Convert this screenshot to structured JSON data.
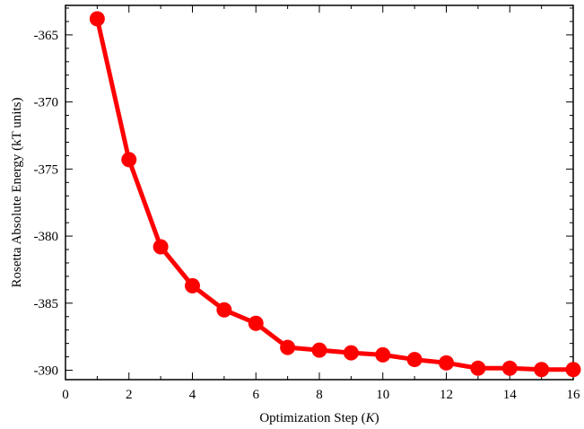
{
  "chart_data": {
    "type": "line",
    "title": "",
    "xlabel_prefix": "Optimization Step (",
    "xlabel_var": "K",
    "xlabel_suffix": ")",
    "ylabel": "Rosetta Absolute Energy (kT units)",
    "xlim": [
      0,
      16
    ],
    "ylim": [
      -390.7,
      -362.8
    ],
    "xticks": [
      0,
      2,
      4,
      6,
      8,
      10,
      12,
      14,
      16
    ],
    "yticks": [
      -365,
      -370,
      -375,
      -380,
      -385,
      -390
    ],
    "grid": false,
    "legend": "none",
    "color": "#ff0000",
    "series": [
      {
        "x": [
          1,
          2,
          3,
          4,
          5,
          6,
          7,
          8,
          9,
          10,
          11,
          12,
          13,
          14,
          15,
          16
        ],
        "values": [
          -363.8,
          -374.3,
          -380.8,
          -383.7,
          -385.5,
          -386.5,
          -388.3,
          -388.5,
          -388.7,
          -388.85,
          -389.2,
          -389.45,
          -389.85,
          -389.85,
          -389.95,
          -389.95
        ]
      }
    ]
  }
}
